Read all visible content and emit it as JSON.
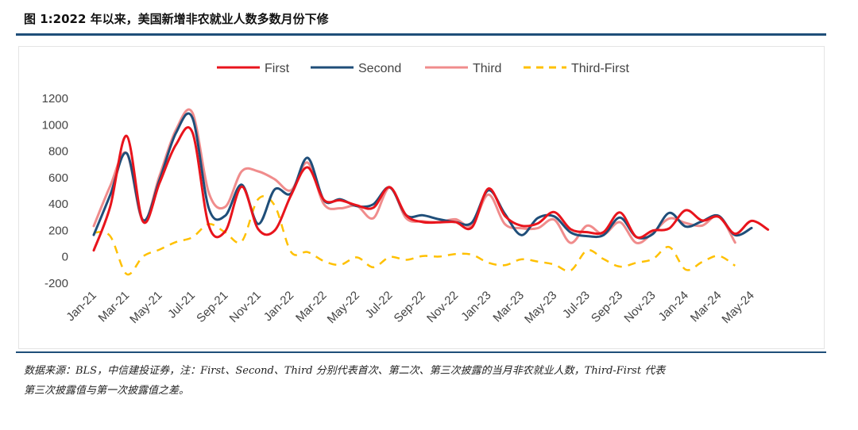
{
  "header": {
    "title": "图 1:2022 年以来，美国新增非农就业人数多数月份下修"
  },
  "footer": {
    "note_line1": "数据来源：BLS，中信建投证券，注：First、Second、Third 分别代表首次、第二次、第三次披露的当月非农就业人数，Third-First 代表",
    "note_line2": "第三次披露值与第一次披露值之差。"
  },
  "colors": {
    "first": "#e8141c",
    "second": "#1f4e79",
    "third": "#f08c8c",
    "third_first": "#ffc000",
    "rule": "#1f4e79"
  },
  "chart_data": {
    "type": "line",
    "title": "",
    "xlabel": "",
    "ylabel": "",
    "ylim": [
      -200,
      1200
    ],
    "yticks": [
      -200,
      0,
      200,
      400,
      600,
      800,
      1000,
      1200
    ],
    "grid": false,
    "legend_position": "top",
    "x": [
      "Jan-21",
      "Feb-21",
      "Mar-21",
      "Apr-21",
      "May-21",
      "Jun-21",
      "Jul-21",
      "Aug-21",
      "Sep-21",
      "Oct-21",
      "Nov-21",
      "Dec-21",
      "Jan-22",
      "Feb-22",
      "Mar-22",
      "Apr-22",
      "May-22",
      "Jun-22",
      "Jul-22",
      "Aug-22",
      "Sep-22",
      "Oct-22",
      "Nov-22",
      "Dec-22",
      "Jan-23",
      "Feb-23",
      "Mar-23",
      "Apr-23",
      "May-23",
      "Jun-23",
      "Jul-23",
      "Aug-23",
      "Sep-23",
      "Oct-23",
      "Nov-23",
      "Dec-23",
      "Jan-24",
      "Feb-24",
      "Mar-24",
      "Apr-24",
      "May-24",
      "Jun-24"
    ],
    "xtick_labels": [
      "Jan-21",
      "Mar-21",
      "May-21",
      "Jul-21",
      "Sep-21",
      "Nov-21",
      "Jan-22",
      "Mar-22",
      "May-22",
      "Jul-22",
      "Sep-22",
      "Nov-22",
      "Jan-23",
      "Mar-23",
      "May-23",
      "Jul-23",
      "Sep-23",
      "Nov-23",
      "Jan-24",
      "Mar-24",
      "May-24"
    ],
    "series": [
      {
        "name": "First",
        "key": "first",
        "style": "solid",
        "values": [
          49,
          379,
          916,
          266,
          559,
          850,
          943,
          235,
          194,
          531,
          210,
          199,
          467,
          678,
          431,
          428,
          390,
          372,
          528,
          315,
          263,
          261,
          263,
          223,
          517,
          311,
          236,
          253,
          339,
          209,
          187,
          187,
          336,
          150,
          199,
          216,
          353,
          275,
          303,
          175,
          272,
          206
        ]
      },
      {
        "name": "Second",
        "key": "second",
        "style": "solid",
        "values": [
          166,
          468,
          785,
          278,
          583,
          938,
          1053,
          366,
          312,
          546,
          249,
          510,
          481,
          750,
          428,
          436,
          384,
          398,
          526,
          315,
          315,
          284,
          263,
          260,
          504,
          326,
          165,
          294,
          306,
          185,
          157,
          165,
          297,
          150,
          173,
          333,
          229,
          270,
          310,
          165,
          218,
          null
        ]
      },
      {
        "name": "Third",
        "key": "third",
        "style": "solid",
        "values": [
          233,
          536,
          785,
          269,
          614,
          962,
          1091,
          483,
          379,
          648,
          647,
          588,
          504,
          714,
          398,
          368,
          386,
          293,
          526,
          292,
          269,
          263,
          284,
          239,
          472,
          248,
          217,
          217,
          281,
          105,
          236,
          170,
          262,
          105,
          182,
          290,
          256,
          236,
          310,
          108,
          null,
          null
        ]
      },
      {
        "name": "Third-First",
        "key": "third_first",
        "style": "dashed",
        "values": [
          184,
          157,
          -131,
          3,
          55,
          112,
          148,
          248,
          185,
          117,
          437,
          389,
          37,
          36,
          -33,
          -60,
          -4,
          -79,
          -2,
          -23,
          6,
          2,
          21,
          16,
          -45,
          -63,
          -19,
          -36,
          -58,
          -104,
          49,
          -17,
          -74,
          -45,
          -17,
          74,
          -97,
          -39,
          7,
          -67,
          null,
          null
        ]
      }
    ]
  }
}
